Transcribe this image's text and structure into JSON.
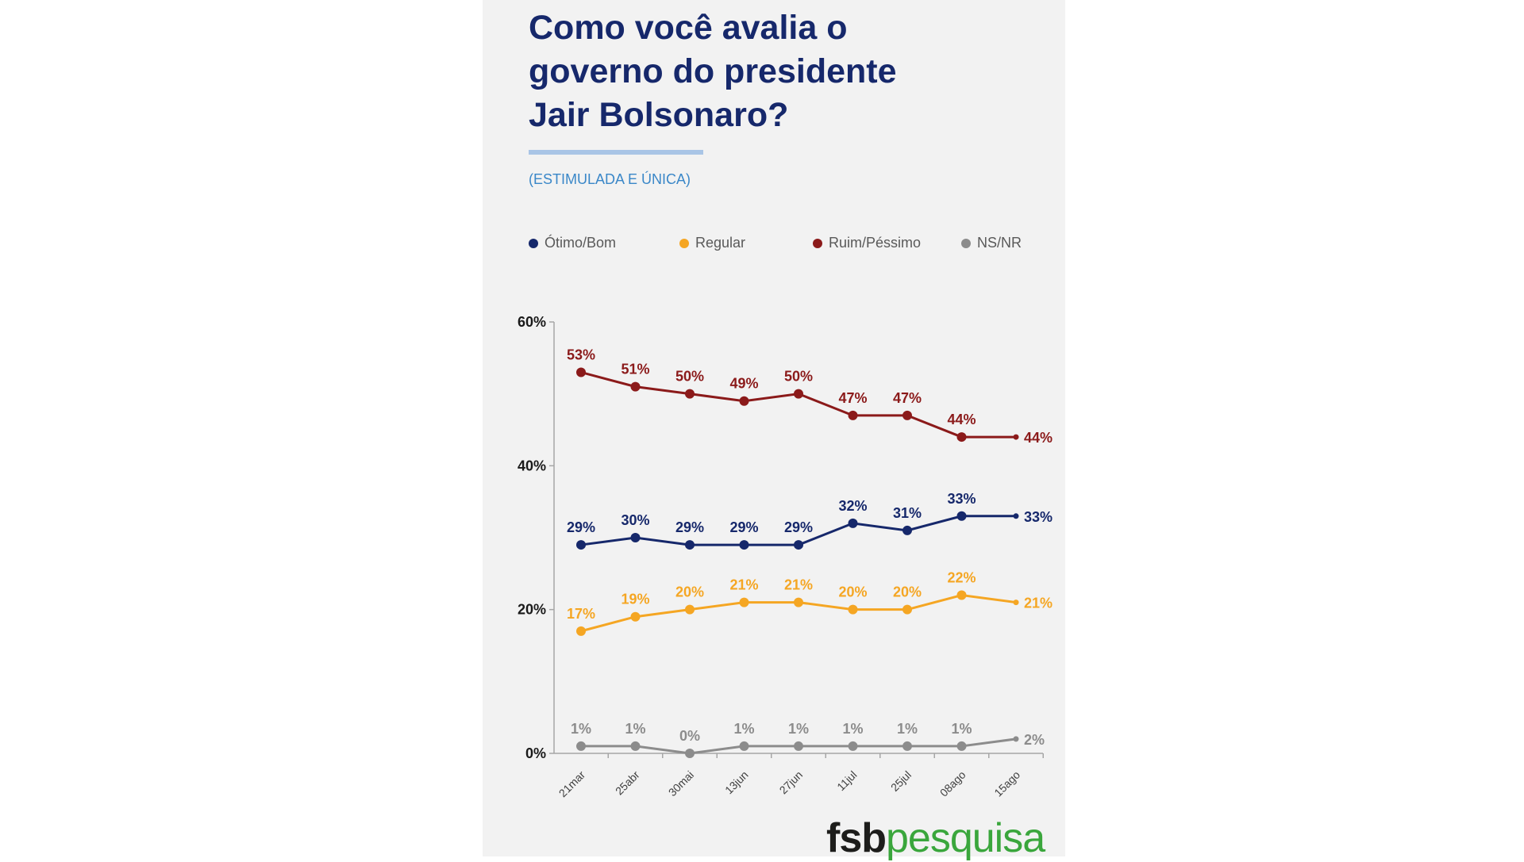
{
  "title_lines": [
    "Como você avalia o",
    "governo do presidente",
    "Jair Bolsonaro?"
  ],
  "subtitle": "(ESTIMULADA E ÚNICA)",
  "logo": {
    "part1": "fsb",
    "part2": "pesquisa"
  },
  "colors": {
    "otimo": "#16286b",
    "regular": "#f5a623",
    "ruim": "#8b1a1a",
    "nsnr": "#8c8c8c",
    "title": "#16286b",
    "subtitle": "#3a87c8",
    "panel": "#f2f2f2",
    "logo_green": "#3aa63c"
  },
  "chart_data": {
    "type": "line",
    "categories": [
      "21mar",
      "25abr",
      "30mai",
      "13jun",
      "27jun",
      "11jul",
      "25jul",
      "08ago",
      "15ago"
    ],
    "ylim": [
      0,
      60
    ],
    "yticks": [
      "0%",
      "20%",
      "40%",
      "60%"
    ],
    "ytick_values": [
      0,
      20,
      40,
      60
    ],
    "legend_position": "top",
    "grid": false,
    "series": [
      {
        "name": "Ruim/Péssimo",
        "color": "#8b1a1a",
        "values": [
          53,
          51,
          50,
          49,
          50,
          47,
          47,
          44,
          44
        ],
        "labels": [
          "53%",
          "51%",
          "50%",
          "49%",
          "50%",
          "47%",
          "47%",
          "44%",
          "44%"
        ]
      },
      {
        "name": "Ótimo/Bom",
        "color": "#16286b",
        "values": [
          29,
          30,
          29,
          29,
          29,
          32,
          31,
          33,
          33
        ],
        "labels": [
          "29%",
          "30%",
          "29%",
          "29%",
          "29%",
          "32%",
          "31%",
          "33%",
          "33%"
        ]
      },
      {
        "name": "Regular",
        "color": "#f5a623",
        "values": [
          17,
          19,
          20,
          21,
          21,
          20,
          20,
          22,
          21
        ],
        "labels": [
          "17%",
          "19%",
          "20%",
          "21%",
          "21%",
          "20%",
          "20%",
          "22%",
          "21%"
        ]
      },
      {
        "name": "NS/NR",
        "color": "#8c8c8c",
        "values": [
          1,
          1,
          0,
          1,
          1,
          1,
          1,
          1,
          2
        ],
        "labels": [
          "1%",
          "1%",
          "0%",
          "1%",
          "1%",
          "1%",
          "1%",
          "1%",
          "2%"
        ]
      }
    ],
    "legend_order": [
      "Ótimo/Bom",
      "Regular",
      "Ruim/Péssimo",
      "NS/NR"
    ]
  }
}
